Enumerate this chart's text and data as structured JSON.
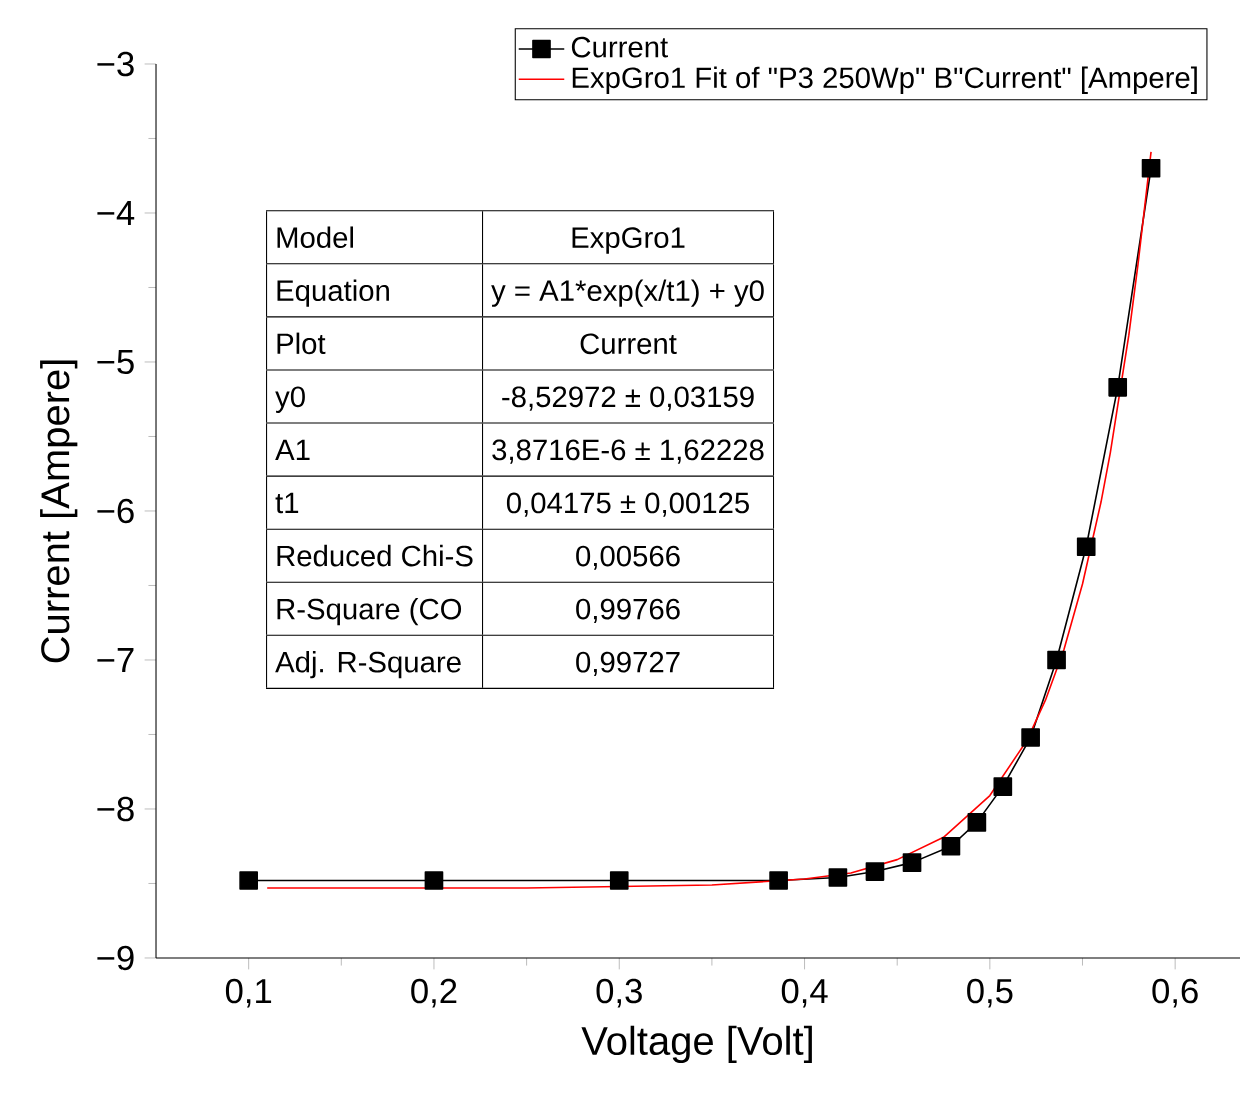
{
  "chart_data": {
    "type": "line",
    "xlabel": "Voltage [Volt]",
    "ylabel": "Current [Ampere]",
    "xlim": [
      0.05,
      0.635
    ],
    "ylim": [
      -9,
      -3
    ],
    "xticks": [
      {
        "value": 0.1,
        "label": "0,1"
      },
      {
        "value": 0.2,
        "label": "0,2"
      },
      {
        "value": 0.3,
        "label": "0,3"
      },
      {
        "value": 0.4,
        "label": "0,4"
      },
      {
        "value": 0.5,
        "label": "0,5"
      },
      {
        "value": 0.6,
        "label": "0,6"
      }
    ],
    "yticks": [
      {
        "value": -9,
        "label": "−9"
      },
      {
        "value": -8,
        "label": "−8"
      },
      {
        "value": -7,
        "label": "−7"
      },
      {
        "value": -6,
        "label": "−6"
      },
      {
        "value": -5,
        "label": "−5"
      },
      {
        "value": -4,
        "label": "−4"
      },
      {
        "value": -3,
        "label": "−3"
      }
    ],
    "legend": "top right",
    "grid": false,
    "series": [
      {
        "name": "Current",
        "color": "#000000",
        "marker": "square",
        "line_style": "solid",
        "x": [
          0.1,
          0.2,
          0.3,
          0.386,
          0.418,
          0.438,
          0.458,
          0.479,
          0.493,
          0.507,
          0.522,
          0.536,
          0.552,
          0.569,
          0.587
        ],
        "values": [
          -8.48,
          -8.48,
          -8.48,
          -8.48,
          -8.46,
          -8.42,
          -8.36,
          -8.25,
          -8.09,
          -7.85,
          -7.52,
          -7.0,
          -6.24,
          -5.17,
          -3.7
        ]
      },
      {
        "name": "ExpGro1 Fit of \"P3 250Wp\" B\"Current\" [Ampere]",
        "color": "#ff0000",
        "marker": "none",
        "line_style": "solid",
        "x": [
          0.11,
          0.15,
          0.25,
          0.35,
          0.4,
          0.425,
          0.45,
          0.475,
          0.5,
          0.52,
          0.53,
          0.54,
          0.55,
          0.56,
          0.565,
          0.575,
          0.58,
          0.587
        ],
        "values": [
          -8.53,
          -8.53,
          -8.53,
          -8.51,
          -8.47,
          -8.43,
          -8.34,
          -8.19,
          -7.91,
          -7.54,
          -7.27,
          -6.93,
          -6.49,
          -5.94,
          -5.61,
          -4.82,
          -4.34,
          -3.59
        ]
      }
    ],
    "annotations": [
      "Model",
      "ExpGro1",
      "Equation",
      "y = A1*exp(x/t1) + y0",
      "Plot",
      "Current",
      "y0",
      "-8,52972 ± 0,03159",
      "A1",
      "3,8716E-6 ± 1,62228",
      "t1",
      "0,04175 ± 0,00125",
      "Reduced Chi-S",
      "0,00566",
      "R-Square (CO",
      "0,99766",
      "Adj. R-Square",
      "0,99727"
    ]
  }
}
